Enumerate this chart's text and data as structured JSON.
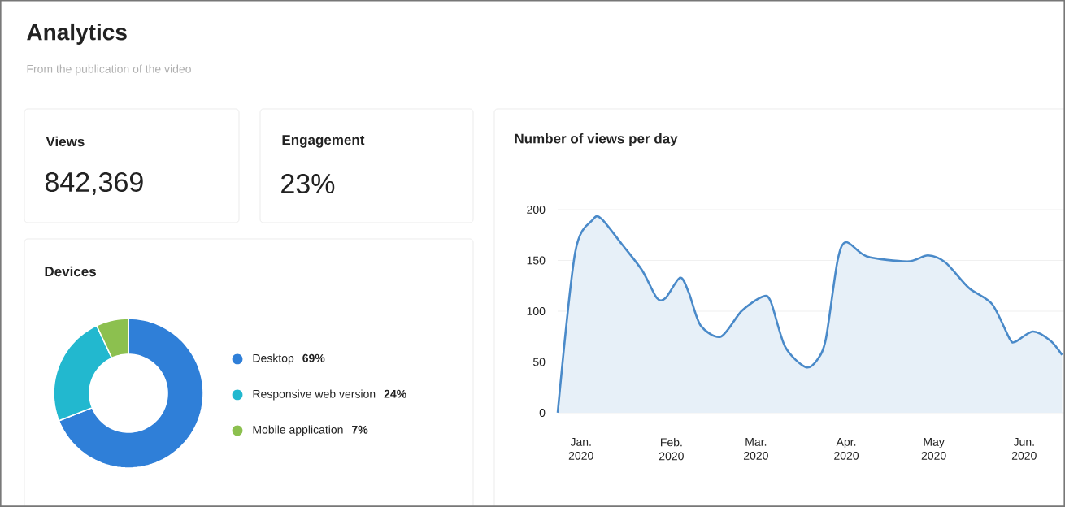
{
  "chart_data": [
    {
      "type": "other",
      "title": "Analytics",
      "subtitle": "From the publication of the video"
    },
    {
      "type": "other",
      "title": "Views",
      "annotations": [
        "842,369"
      ]
    },
    {
      "type": "other",
      "title": "Engagement",
      "annotations": [
        "23%"
      ]
    },
    {
      "type": "donut",
      "title": "Devices",
      "categories": [
        "Desktop",
        "Responsive web version",
        "Mobile application"
      ],
      "values": [
        69,
        24,
        7
      ],
      "colors": [
        "#2f7fd8",
        "#22b8cf",
        "#8cc04f"
      ],
      "value_labels": [
        "69%",
        "24%",
        "7%"
      ],
      "legend": "right"
    },
    {
      "type": "area",
      "title": "Number of views per day",
      "color": "#4a8ac9",
      "grid": "y",
      "x": [
        "2019-12-24",
        "2019-12-30",
        "2020-01-05",
        "2020-01-08",
        "2020-01-15",
        "2020-01-22",
        "2020-01-27",
        "2020-01-30",
        "2020-02-04",
        "2020-02-07",
        "2020-02-11",
        "2020-02-18",
        "2020-02-25",
        "2020-03-03",
        "2020-03-06",
        "2020-03-11",
        "2020-03-18",
        "2020-03-22",
        "2020-03-25",
        "2020-03-29",
        "2020-04-01",
        "2020-04-08",
        "2020-04-22",
        "2020-04-29",
        "2020-05-05",
        "2020-05-13",
        "2020-05-21",
        "2020-05-27",
        "2020-05-29",
        "2020-06-04",
        "2020-06-10",
        "2020-06-14"
      ],
      "values": [
        0,
        158,
        190,
        191,
        166,
        140,
        113,
        113,
        133,
        118,
        86,
        75,
        100,
        114,
        110,
        65,
        45,
        52,
        73,
        150,
        168,
        154,
        149,
        155,
        148,
        123,
        107,
        73,
        70,
        80,
        71,
        57
      ],
      "xlim": [
        "2019-12-24",
        "2020-06-15"
      ],
      "ylim": [
        0,
        200
      ],
      "yticks": [
        0,
        50,
        100,
        150,
        200
      ],
      "xticks": [
        {
          "value": "2020-01-01",
          "label": "Jan. 2020"
        },
        {
          "value": "2020-02-01",
          "label": "Feb. 2020"
        },
        {
          "value": "2020-03-01",
          "label": "Mar. 2020"
        },
        {
          "value": "2020-04-01",
          "label": "Apr. 2020"
        },
        {
          "value": "2020-05-01",
          "label": "May 2020"
        },
        {
          "value": "2020-06-01",
          "label": "Jun. 2020"
        }
      ]
    }
  ]
}
